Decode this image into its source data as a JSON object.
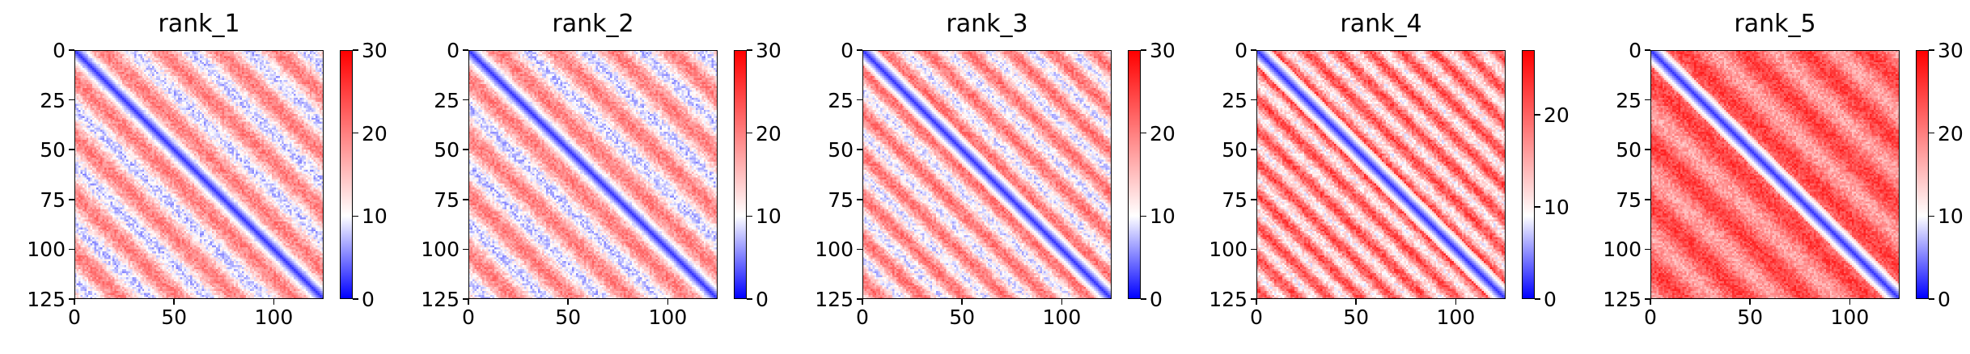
{
  "figure": {
    "colormap": {
      "low": "#0000ff",
      "mid": "#ffffff",
      "high": "#ff0000",
      "vmin": 0,
      "vmax": 30
    }
  },
  "chart_data": [
    {
      "type": "heatmap",
      "title": "rank_1",
      "matrix_size": 125,
      "x_ticks": [
        0,
        50,
        100
      ],
      "y_ticks": [
        0,
        25,
        50,
        75,
        100,
        125
      ],
      "colorbar_ticks": [
        0,
        10,
        20,
        30
      ],
      "vmin": 0,
      "vmax": 30,
      "diagonal_value": 2,
      "band_period": 29,
      "off_band_value": 20,
      "in_band_value": 8
    },
    {
      "type": "heatmap",
      "title": "rank_2",
      "matrix_size": 125,
      "x_ticks": [
        0,
        50,
        100
      ],
      "y_ticks": [
        0,
        25,
        50,
        75,
        100,
        125
      ],
      "colorbar_ticks": [
        0,
        10,
        20,
        30
      ],
      "vmin": 0,
      "vmax": 30,
      "diagonal_value": 2,
      "band_period": 29,
      "off_band_value": 20,
      "in_band_value": 8
    },
    {
      "type": "heatmap",
      "title": "rank_3",
      "matrix_size": 125,
      "x_ticks": [
        0,
        50,
        100
      ],
      "y_ticks": [
        0,
        25,
        50,
        75,
        100,
        125
      ],
      "colorbar_ticks": [
        0,
        10,
        20,
        30
      ],
      "vmin": 0,
      "vmax": 30,
      "diagonal_value": 2,
      "band_period": 21,
      "off_band_value": 21,
      "in_band_value": 9
    },
    {
      "type": "heatmap",
      "title": "rank_4",
      "matrix_size": 125,
      "x_ticks": [
        0,
        50,
        100
      ],
      "y_ticks": [
        0,
        25,
        50,
        75,
        100,
        125
      ],
      "colorbar_ticks": [
        0,
        10,
        20
      ],
      "vmin": 0,
      "vmax": 27,
      "diagonal_value": 2,
      "band_period": 16,
      "off_band_value": 22,
      "in_band_value": 11
    },
    {
      "type": "heatmap",
      "title": "rank_5",
      "matrix_size": 125,
      "x_ticks": [
        0,
        50,
        100
      ],
      "y_ticks": [
        0,
        25,
        50,
        75,
        100,
        125
      ],
      "colorbar_ticks": [
        0,
        10,
        20,
        30
      ],
      "vmin": 0,
      "vmax": 30,
      "diagonal_value": 2,
      "band_period": 31,
      "off_band_value": 25,
      "in_band_value": 17
    }
  ]
}
